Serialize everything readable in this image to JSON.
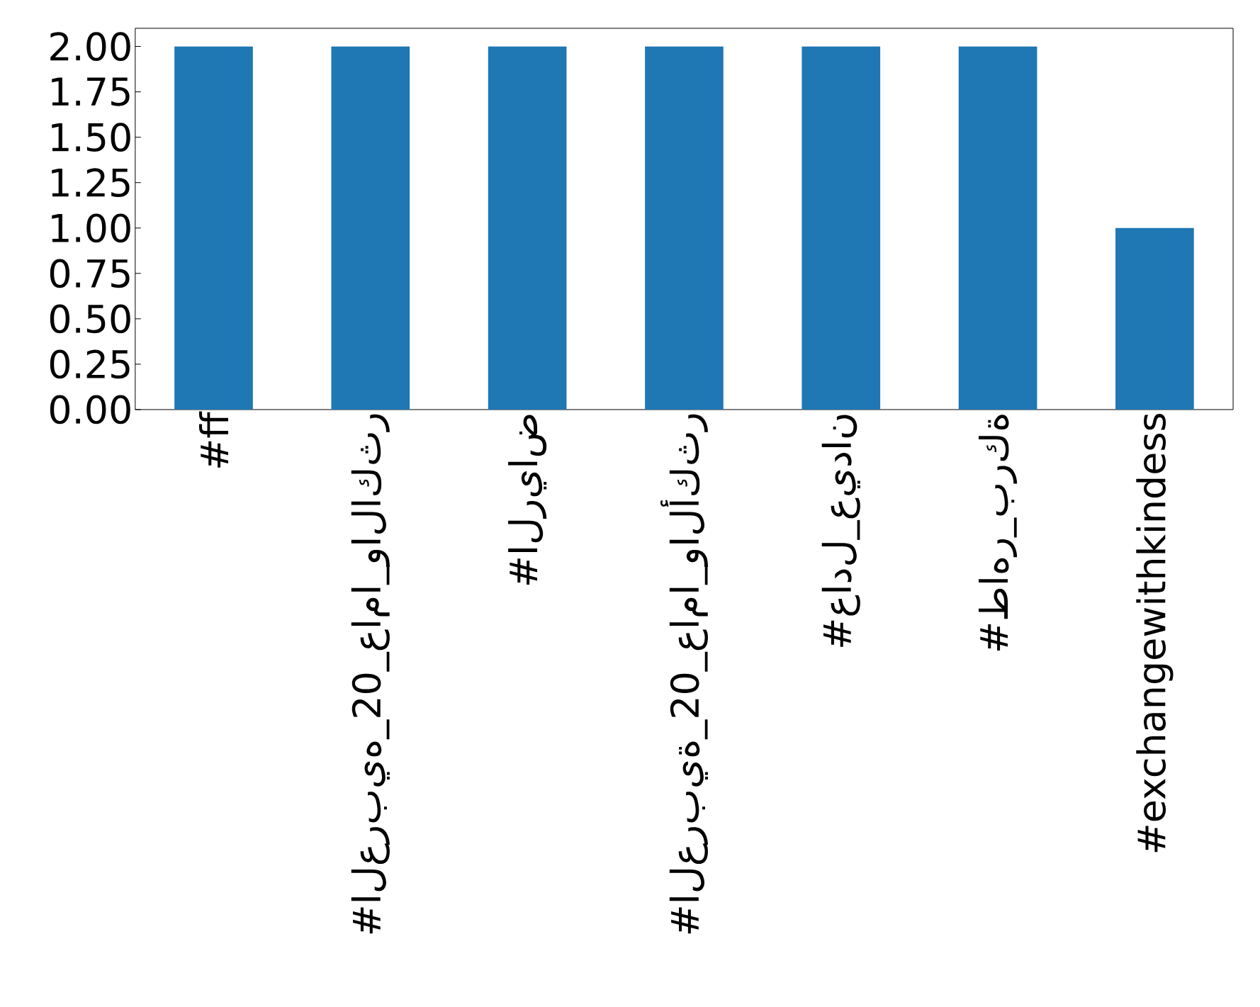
{
  "chart_data": {
    "type": "bar",
    "categories": [
      "#ff",
      "#العربيه_20_عاما_والاكثر",
      "#الرياض",
      "#العربية_20_عاما_والأكثر",
      "#عادل_عيدان",
      "#طاهر_بركة",
      "#exchangewithkindess"
    ],
    "values": [
      2,
      2,
      2,
      2,
      2,
      2,
      1
    ],
    "color": "#1f77b4",
    "ylim": [
      0,
      2.1
    ],
    "yticks": [
      {
        "value": 0,
        "label": "0.00"
      },
      {
        "value": 0.25,
        "label": "0.25"
      },
      {
        "value": 0.5,
        "label": "0.50"
      },
      {
        "value": 0.75,
        "label": "0.75"
      },
      {
        "value": 1,
        "label": "1.00"
      },
      {
        "value": 1.25,
        "label": "1.25"
      },
      {
        "value": 1.5,
        "label": "1.50"
      },
      {
        "value": 1.75,
        "label": "1.75"
      },
      {
        "value": 2,
        "label": "2.00"
      }
    ]
  }
}
